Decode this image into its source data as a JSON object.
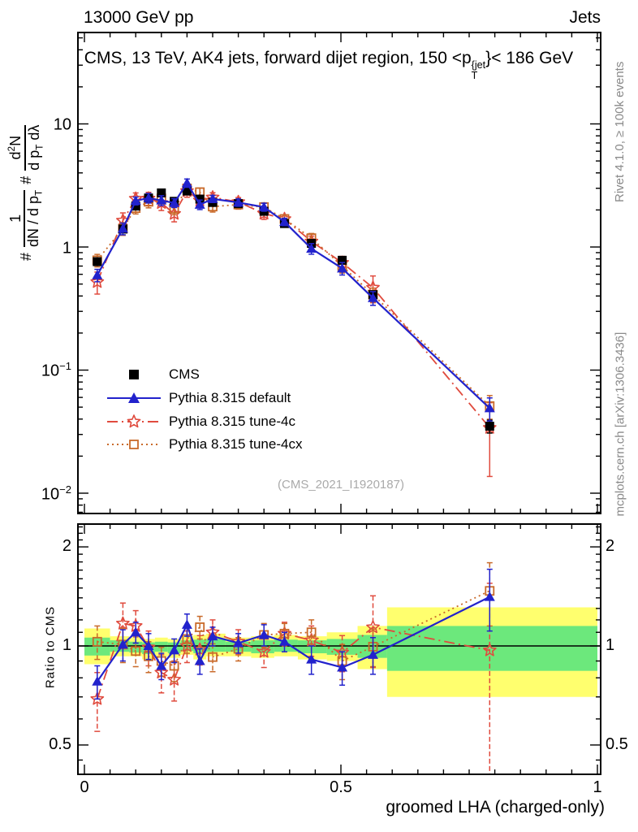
{
  "header": {
    "left": "13000 GeV pp",
    "right": "Jets"
  },
  "title": {
    "pre": "CMS, 13 TeV, AK4 jets, forward dijet region, 150 <p",
    "sup": "{jet",
    "sub": "T",
    "post": "}< 186 GeV"
  },
  "watermark": "(CMS_2021_I1920187)",
  "side_notes": {
    "top": "Rivet 4.1.0, ≥ 100k events",
    "bottom": "mcplots.cern.ch [arXiv:1306.3436]"
  },
  "ylabel": {
    "hash": "#",
    "num1": "1",
    "den1_a": "dN / d p",
    "den1_sub": "T",
    "num2_a": "d",
    "num2_sup": "2",
    "num2_b": "N",
    "den2_a": "d p",
    "den2_sub": "T",
    "den2_b": " dλ"
  },
  "ratio_ylabel": "Ratio to CMS",
  "xlabel": "groomed LHA (charged-only)",
  "legend": [
    {
      "label": "CMS",
      "type": "filled-square",
      "color": "#000000",
      "line": "none"
    },
    {
      "label": "Pythia 8.315 default",
      "type": "filled-triangle",
      "color": "#2222cc",
      "line": "solid"
    },
    {
      "label": "Pythia 8.315 tune-4c",
      "type": "open-star",
      "color": "#e04b3e",
      "line": "dashdot"
    },
    {
      "label": "Pythia 8.315 tune-4cx",
      "type": "open-square",
      "color": "#c96a2a",
      "line": "dotted"
    }
  ],
  "colors": {
    "cms": "#000000",
    "default": "#2222cc",
    "tune4c": "#e04b3e",
    "tune4cx": "#c96a2a",
    "band_yellow": "#ffff6e",
    "band_green": "#6ce87c",
    "gray_text": "#8a8a8a"
  },
  "chart_data": {
    "type": "line",
    "title": "CMS, 13 TeV, AK4 jets, forward dijet region, 150 < pT{jet} < 186 GeV",
    "xlabel": "groomed LHA (charged-only)",
    "ylabel": "# 1/(dN/dpT) # d2N/(dpT dLambda)",
    "x": [
      0.025,
      0.075,
      0.1,
      0.125,
      0.15,
      0.175,
      0.2,
      0.225,
      0.25,
      0.3,
      0.35,
      0.39,
      0.4425,
      0.5025,
      0.5625,
      0.79
    ],
    "series": [
      {
        "name": "CMS",
        "marker": "filled-square",
        "color": "#000000",
        "line": "none",
        "values": [
          0.76,
          1.4,
          2.15,
          2.5,
          2.75,
          2.35,
          2.85,
          2.45,
          2.3,
          2.25,
          1.95,
          1.55,
          1.07,
          0.78,
          0.41,
          0.035
        ],
        "rel_err": [
          0.06,
          0.05,
          0.04,
          0.04,
          0.04,
          0.04,
          0.04,
          0.04,
          0.04,
          0.04,
          0.04,
          0.04,
          0.05,
          0.05,
          0.06,
          0.12
        ]
      },
      {
        "name": "Pythia 8.315 tune-4c",
        "marker": "open-star",
        "color": "#e04b3e",
        "line": "dashdot",
        "values": [
          0.52,
          1.64,
          2.47,
          2.48,
          2.28,
          1.86,
          2.85,
          2.39,
          2.53,
          2.32,
          1.87,
          1.69,
          1.11,
          0.745,
          0.467,
          0.034
        ],
        "ratio": [
          0.69,
          1.17,
          1.15,
          0.99,
          0.83,
          0.79,
          1.0,
          0.975,
          1.1,
          1.03,
          0.96,
          1.09,
          1.04,
          0.955,
          1.14,
          0.97
        ],
        "ratio_err": [
          0.14,
          0.18,
          0.13,
          0.12,
          0.11,
          0.11,
          0.11,
          0.1,
          0.1,
          0.09,
          0.1,
          0.09,
          0.11,
          0.12,
          0.28,
          0.58
        ]
      },
      {
        "name": "Pythia 8.315 tune-4cx",
        "marker": "open-square",
        "color": "#c96a2a",
        "line": "dotted",
        "values": [
          0.78,
          1.41,
          2.07,
          2.33,
          2.48,
          2.04,
          2.99,
          2.79,
          2.13,
          2.21,
          2.11,
          1.69,
          1.18,
          0.7,
          0.41,
          0.051
        ],
        "ratio": [
          1.03,
          1.01,
          0.965,
          0.93,
          0.9,
          0.87,
          1.05,
          1.14,
          0.925,
          0.98,
          1.08,
          1.09,
          1.1,
          0.9,
          0.995,
          1.47
        ],
        "ratio_err": [
          0.12,
          0.12,
          0.1,
          0.1,
          0.09,
          0.09,
          0.1,
          0.09,
          0.09,
          0.08,
          0.09,
          0.08,
          0.1,
          0.11,
          0.13,
          0.32
        ]
      },
      {
        "name": "Pythia 8.315 default",
        "marker": "filled-triangle",
        "color": "#2222cc",
        "line": "solid",
        "values": [
          0.59,
          1.41,
          2.37,
          2.5,
          2.39,
          2.28,
          3.31,
          2.21,
          2.46,
          2.3,
          2.11,
          1.6,
          0.97,
          0.67,
          0.385,
          0.049
        ],
        "ratio": [
          0.78,
          1.01,
          1.1,
          1.0,
          0.87,
          0.97,
          1.16,
          0.9,
          1.07,
          1.02,
          1.08,
          1.03,
          0.91,
          0.86,
          0.94,
          1.41
        ],
        "ratio_err": [
          0.09,
          0.11,
          0.08,
          0.09,
          0.08,
          0.08,
          0.09,
          0.08,
          0.07,
          0.07,
          0.08,
          0.07,
          0.09,
          0.1,
          0.12,
          0.3
        ]
      }
    ],
    "ratio_bands": {
      "edges": [
        0,
        0.05,
        0.0875,
        0.1125,
        0.1375,
        0.1625,
        0.1875,
        0.2125,
        0.2375,
        0.275,
        0.325,
        0.37,
        0.416,
        0.4725,
        0.5325,
        0.59,
        1.0
      ],
      "yellow_lo": [
        0.88,
        0.93,
        0.93,
        0.91,
        0.93,
        0.92,
        0.94,
        0.91,
        0.93,
        0.93,
        0.92,
        0.93,
        0.91,
        0.9,
        0.85,
        0.7
      ],
      "yellow_hi": [
        1.13,
        1.07,
        1.06,
        1.05,
        1.06,
        1.05,
        1.07,
        1.08,
        1.09,
        1.06,
        1.07,
        1.08,
        1.07,
        1.1,
        1.15,
        1.31
      ],
      "green_lo": [
        0.935,
        0.96,
        0.955,
        0.945,
        0.96,
        0.95,
        0.965,
        0.95,
        0.96,
        0.96,
        0.95,
        0.96,
        0.95,
        0.94,
        0.92,
        0.84
      ],
      "green_hi": [
        1.06,
        1.04,
        1.03,
        1.025,
        1.03,
        1.025,
        1.04,
        1.045,
        1.05,
        1.03,
        1.04,
        1.045,
        1.04,
        1.05,
        1.08,
        1.15
      ]
    },
    "main_axis": {
      "scale": "log",
      "ymin": 0.0068,
      "ymax": 55,
      "yticks": [
        {
          "v": 10,
          "base": "10"
        },
        {
          "v": 1,
          "base": "1"
        },
        {
          "v": 0.1,
          "base": "10",
          "exp": "−1"
        },
        {
          "v": 0.01,
          "base": "10",
          "exp": "−2"
        }
      ]
    },
    "ratio_axis": {
      "scale": "log",
      "ymin": 0.408,
      "ymax": 2.35,
      "ticks": [
        {
          "v": 2,
          "label": "2"
        },
        {
          "v": 1,
          "label": "1"
        },
        {
          "v": 0.5,
          "label": "0.5"
        }
      ]
    },
    "x_axis": {
      "min": 0,
      "max": 1,
      "minor_step": 0.05,
      "ticks": [
        {
          "v": 0,
          "label": "0"
        },
        {
          "v": 0.5,
          "label": "0.5"
        },
        {
          "v": 1,
          "label": "1"
        }
      ]
    }
  }
}
